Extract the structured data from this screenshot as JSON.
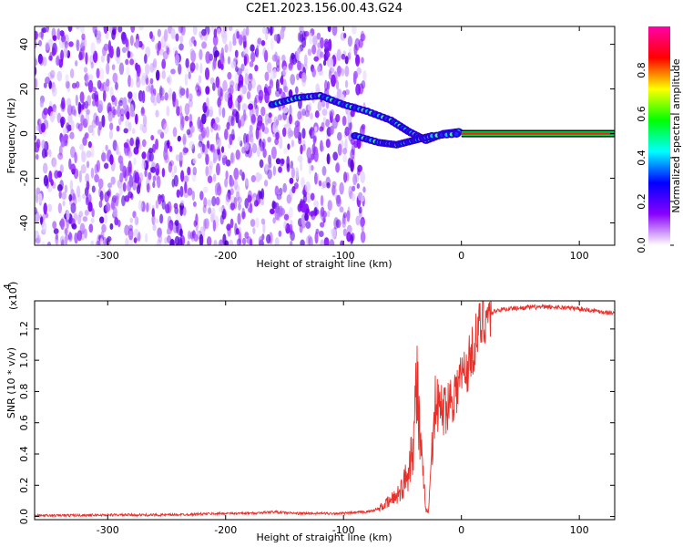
{
  "chart_data": [
    {
      "type": "heatmap",
      "title": "C2E1.2023.156.00.43.G24",
      "xlabel": "Height of straight line (km)",
      "ylabel": "Frequency (Hz)",
      "xlim": [
        -362,
        130
      ],
      "ylim": [
        -50,
        48
      ],
      "xticks": [
        -300,
        -200,
        -100,
        0,
        100
      ],
      "yticks": [
        -40,
        -20,
        0,
        20,
        40
      ],
      "colorbar": {
        "label": "Normalized spectral amplitude",
        "range": [
          0.0,
          1.0
        ],
        "ticks": [
          "0.0",
          "0.2",
          "0.4",
          "0.6",
          "0.8"
        ],
        "colors": [
          "#ffffff",
          "#8800ff",
          "#0000ff",
          "#00ffff",
          "#00ff00",
          "#ffff00",
          "#ff0000",
          "#ff00aa"
        ]
      },
      "features": [
        {
          "name": "broadband noise",
          "x_range": [
            -362,
            -90
          ],
          "amplitude": "low (purple)"
        },
        {
          "name": "descending track",
          "points": [
            [
              -160,
              13
            ],
            [
              -140,
              16
            ],
            [
              -120,
              17
            ],
            [
              -100,
              13
            ],
            [
              -80,
              10
            ],
            [
              -60,
              6
            ],
            [
              -45,
              1
            ],
            [
              -30,
              -3
            ],
            [
              -15,
              0
            ],
            [
              0,
              1
            ]
          ],
          "amplitude": "high"
        },
        {
          "name": "lower track",
          "points": [
            [
              -90,
              -1
            ],
            [
              -70,
              -4
            ],
            [
              -55,
              -5
            ],
            [
              -40,
              -3
            ],
            [
              -25,
              -1
            ],
            [
              0,
              0
            ]
          ],
          "amplitude": "high"
        },
        {
          "name": "carrier line",
          "x_range": [
            0,
            130
          ],
          "frequency": 0,
          "amplitude": "saturated (red)"
        }
      ],
      "grid": false
    },
    {
      "type": "line",
      "title": "",
      "xlabel": "Height of straight line (km)",
      "ylabel": "SNR (10 * v/v)",
      "yscale_note": "(x10",
      "yscale_exp": "4",
      "xlim": [
        -362,
        130
      ],
      "ylim": [
        -0.02,
        1.38
      ],
      "xticks": [
        -300,
        -200,
        -100,
        0,
        100
      ],
      "yticks": [
        "0.0",
        "0.2",
        "0.4",
        "0.6",
        "0.8",
        "1.0",
        "1.2"
      ],
      "line_color": "#e8302a",
      "series": [
        {
          "x": [
            -362,
            -300,
            -250,
            -200,
            -180,
            -160,
            -140,
            -120,
            -100,
            -80,
            -70,
            -60,
            -50,
            -45,
            -40,
            -38,
            -35,
            -32,
            -30,
            -28,
            -25,
            -22,
            -20,
            -15,
            -10,
            -5,
            0,
            5,
            10,
            15,
            20,
            30,
            40,
            60,
            80,
            100,
            120,
            130
          ],
          "values": [
            0.005,
            0.01,
            0.01,
            0.02,
            0.02,
            0.03,
            0.02,
            0.02,
            0.02,
            0.03,
            0.05,
            0.1,
            0.18,
            0.3,
            0.55,
            0.9,
            0.45,
            0.2,
            0.05,
            0.02,
            0.45,
            0.75,
            0.7,
            0.68,
            0.75,
            0.8,
            0.9,
            0.95,
            1.08,
            1.2,
            1.28,
            1.32,
            1.33,
            1.34,
            1.34,
            1.33,
            1.31,
            1.3
          ]
        }
      ],
      "grid": false
    }
  ]
}
